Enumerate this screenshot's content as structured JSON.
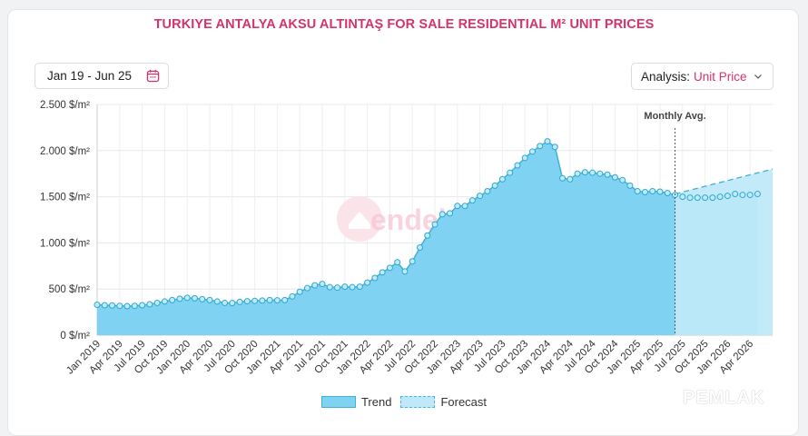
{
  "chart_data": {
    "type": "area",
    "title": "TURKIYE ANTALYA AKSU ALTINTAŞ FOR SALE RESIDENTIAL M² UNIT PRICES",
    "ylim": [
      0,
      2500
    ],
    "y_ticks": [
      0,
      500,
      1000,
      1500,
      2000,
      2500
    ],
    "y_tick_labels": [
      "0 $/m²",
      "500 $/m²",
      "1.000 $/m²",
      "1.500 $/m²",
      "2.000 $/m²",
      "2.500 $/m²"
    ],
    "x_tick_labels": [
      "Jan 2019",
      "Apr 2019",
      "Jul 2019",
      "Oct 2019",
      "Jan 2020",
      "Apr 2020",
      "Jul 2020",
      "Oct 2020",
      "Jan 2021",
      "Apr 2021",
      "Jul 2021",
      "Oct 2021",
      "Jan 2022",
      "Apr 2022",
      "Jul 2022",
      "Oct 2022",
      "Jan 2023",
      "Apr 2023",
      "Jul 2023",
      "Oct 2023",
      "Jan 2024",
      "Apr 2024",
      "Jul 2024",
      "Oct 2024",
      "Jan 2025",
      "Apr 2025",
      "Jul 2025",
      "Oct 2025",
      "Jan 2026",
      "Apr 2026"
    ],
    "x_start": "2019-01",
    "x_end": "2026-07",
    "grid": true,
    "marker_label": "Monthly Avg.",
    "marker_x": "2025-06",
    "series": [
      {
        "name": "Trend",
        "x_start": "2019-01",
        "values": [
          330,
          325,
          322,
          318,
          315,
          318,
          325,
          335,
          350,
          365,
          380,
          395,
          405,
          400,
          390,
          380,
          365,
          350,
          348,
          360,
          368,
          372,
          375,
          380,
          378,
          380,
          420,
          470,
          510,
          540,
          555,
          520,
          515,
          525,
          520,
          525,
          570,
          620,
          680,
          730,
          790,
          690,
          800,
          950,
          1080,
          1200,
          1310,
          1320,
          1400,
          1400,
          1460,
          1510,
          1560,
          1620,
          1690,
          1760,
          1840,
          1920,
          1990,
          2050,
          2100,
          2040,
          1700,
          1690,
          1750,
          1765,
          1760,
          1750,
          1740,
          1710,
          1680,
          1620,
          1560,
          1550,
          1560,
          1555,
          1540,
          1520,
          1500,
          1490,
          1490,
          1490,
          1490,
          1500,
          1510,
          1530,
          1520,
          1520,
          1530
        ]
      },
      {
        "name": "Forecast",
        "x_start": "2025-06",
        "values": [
          1530,
          1800
        ]
      }
    ]
  },
  "header": {
    "date_range": "Jan 19 - Jun 25",
    "analysis_label": "Analysis:",
    "analysis_value": "Unit Price"
  },
  "legend": {
    "trend": "Trend",
    "forecast": "Forecast"
  },
  "watermark": "endeksa",
  "brand": "PEMLAK",
  "colors": {
    "accent": "#d6336c",
    "trend_fill": "#7fd2f2",
    "trend_line": "#3fb2d6",
    "forecast_fill": "#bfe9f8"
  }
}
